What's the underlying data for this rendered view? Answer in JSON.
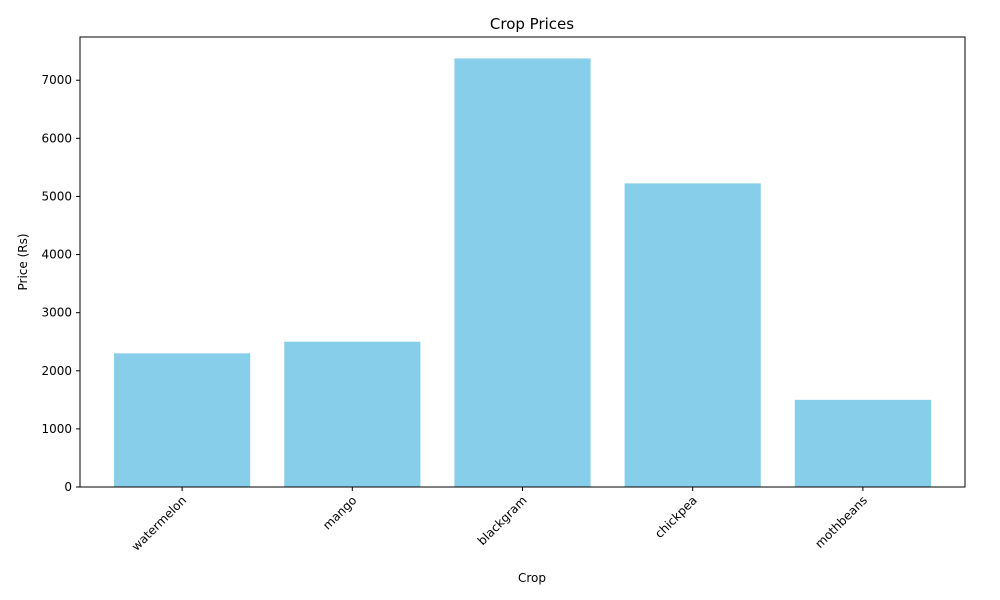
{
  "chart_data": {
    "type": "bar",
    "title": "Crop Prices",
    "xlabel": "Crop",
    "ylabel": "Price (Rs)",
    "categories": [
      "watermelon",
      "mango",
      "blackgram",
      "chickpea",
      "mothbeans"
    ],
    "values": [
      2300,
      2500,
      7375,
      5225,
      1500
    ],
    "ylim": [
      0,
      7744
    ],
    "yticks": [
      0,
      1000,
      2000,
      3000,
      4000,
      5000,
      6000,
      7000
    ],
    "bar_color": "#87ceeb",
    "grid": false,
    "legend": "none"
  }
}
